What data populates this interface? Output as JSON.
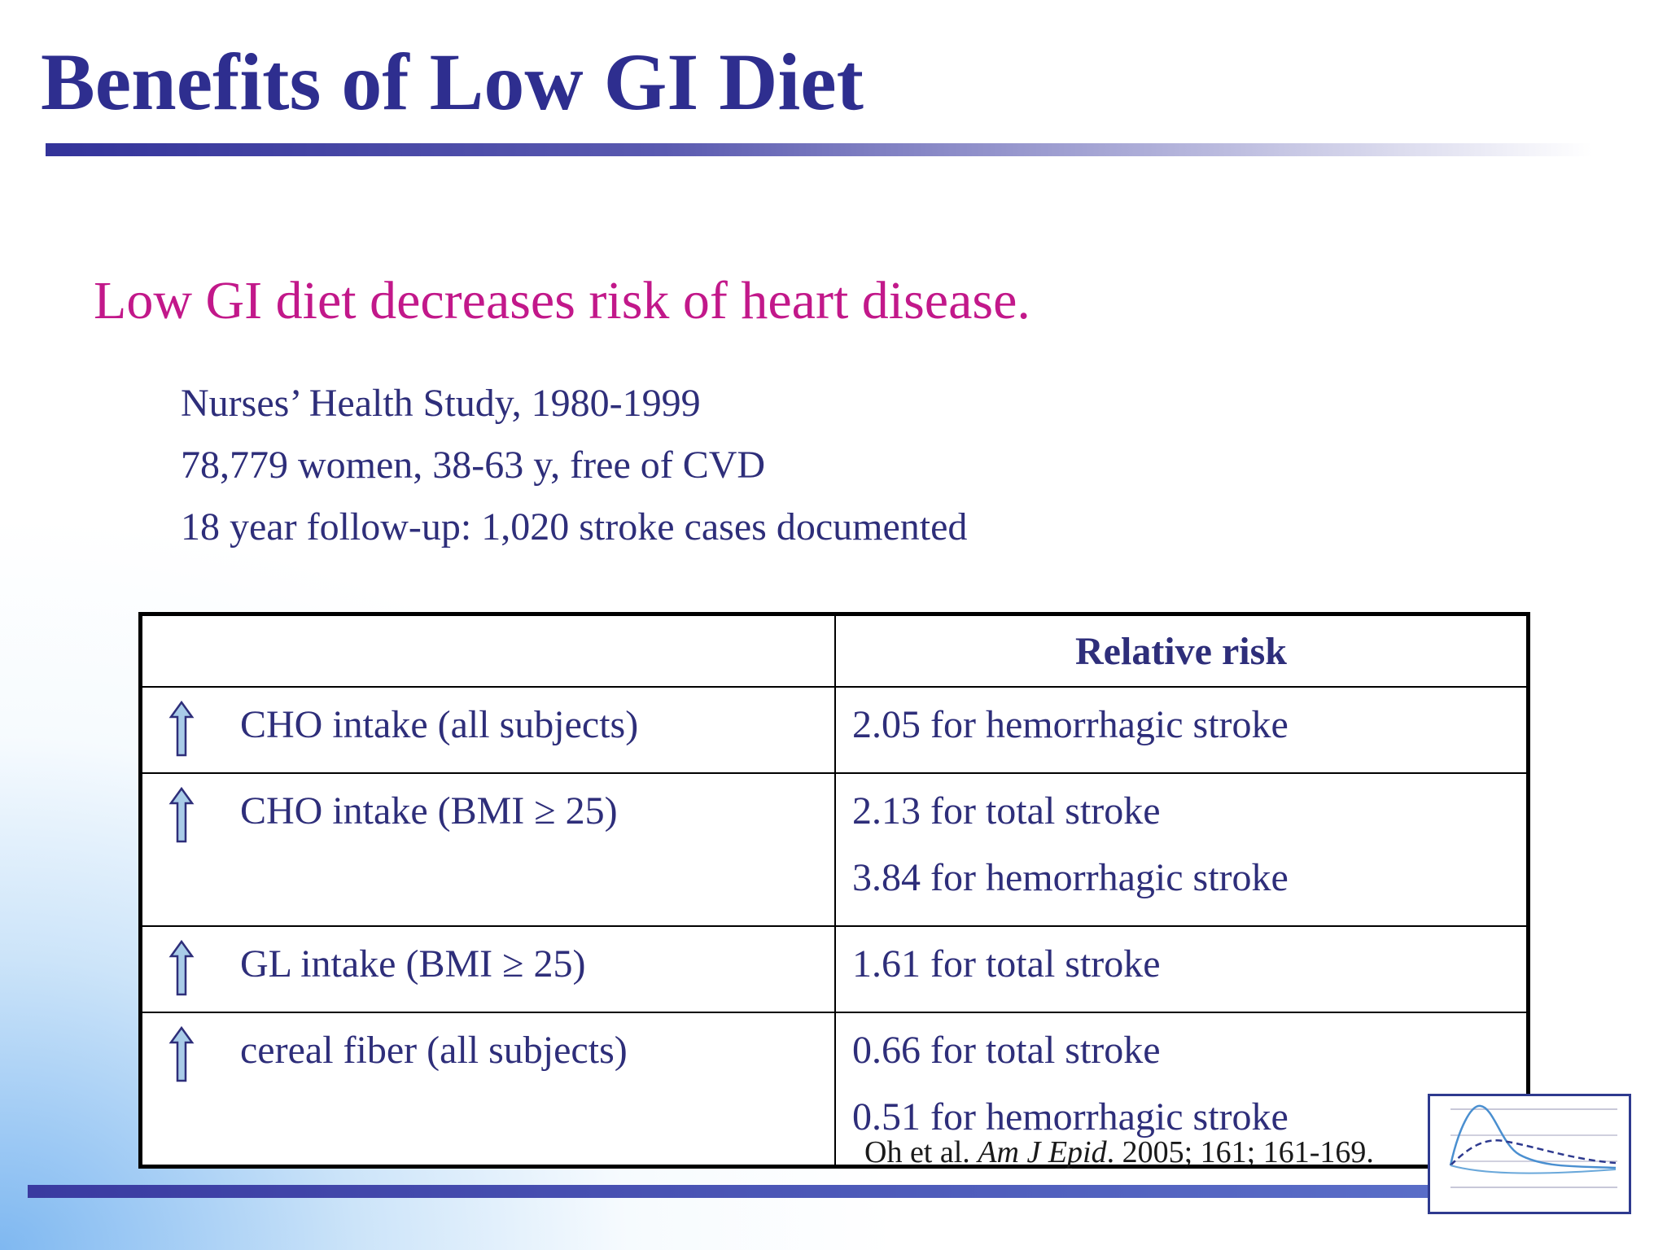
{
  "slide": {
    "title": "Benefits of Low GI Diet",
    "subtitle": "Low GI diet decreases risk of heart disease.",
    "study_lines": [
      "Nurses’ Health Study, 1980-1999",
      "78,779 women, 38-63 y, free of CVD",
      "18 year follow-up: 1,020 stroke cases documented"
    ]
  },
  "table": {
    "header": "Relative risk",
    "rows": [
      {
        "label": "CHO intake (all subjects)",
        "values": [
          "2.05 for hemorrhagic stroke"
        ]
      },
      {
        "label": "CHO intake (BMI ≥ 25)",
        "values": [
          "2.13 for total stroke",
          "3.84 for hemorrhagic stroke"
        ]
      },
      {
        "label": "GL intake (BMI ≥ 25)",
        "values": [
          "1.61 for total stroke"
        ]
      },
      {
        "label": "cereal fiber (all subjects)",
        "values": [
          "0.66 for total stroke",
          "0.51 for hemorrhagic stroke"
        ]
      }
    ],
    "row_icon": "up-arrow-icon"
  },
  "citation": {
    "authors": "Oh et al.",
    "journal": "Am J Epid",
    "details": ". 2005; 161; 161-169."
  },
  "colors": {
    "title": "#2e2e8f",
    "subtitle": "#c2188a",
    "body_text": "#2e2e7a"
  }
}
